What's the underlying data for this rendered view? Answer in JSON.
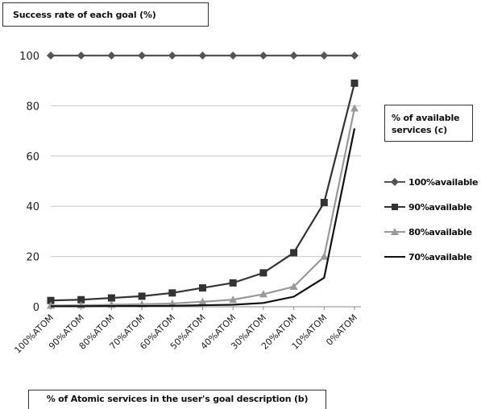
{
  "chart_data": {
    "type": "line",
    "title": "Success rate of each goal (%)",
    "xlabel": "% of Atomic services in the user's goal description (b)",
    "legend_title": "% of available services (c)",
    "legend_position": "right",
    "grid": "horizontal",
    "ylim": [
      0,
      100
    ],
    "yticks": [
      0,
      20,
      40,
      60,
      80,
      100
    ],
    "categories": [
      "100%ATOM",
      "90%ATOM",
      "80%ATOM",
      "70%ATOM",
      "60%ATOM",
      "50%ATOM",
      "40%ATOM",
      "30%ATOM",
      "20%ATOM",
      "10%ATOM",
      "0%ATOM"
    ],
    "series": [
      {
        "name": "100%available",
        "marker": "diamond",
        "color": "#555555",
        "values": [
          100,
          100,
          100,
          100,
          100,
          100,
          100,
          100,
          100,
          100,
          100
        ]
      },
      {
        "name": "90%available",
        "marker": "square",
        "color": "#333333",
        "values": [
          2.5,
          2.8,
          3.5,
          4.2,
          5.5,
          7.5,
          9.5,
          13.5,
          21.5,
          41.5,
          89
        ]
      },
      {
        "name": "80%available",
        "marker": "triangle",
        "color": "#999999",
        "values": [
          0.5,
          0.6,
          0.8,
          1.0,
          1.3,
          2.0,
          2.8,
          5.0,
          8.0,
          20,
          79
        ]
      },
      {
        "name": "70%available",
        "marker": "line",
        "color": "#111111",
        "values": [
          0.2,
          0.2,
          0.3,
          0.3,
          0.4,
          0.6,
          0.8,
          1.5,
          4.0,
          11.5,
          71
        ]
      }
    ]
  }
}
